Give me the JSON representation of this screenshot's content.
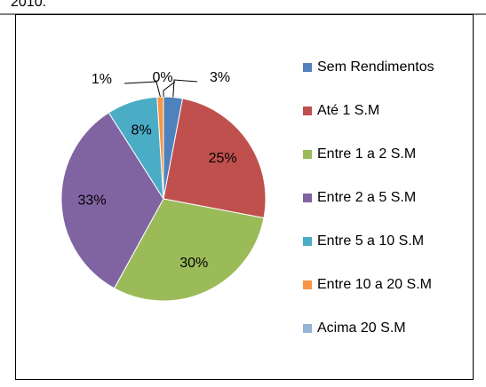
{
  "caption": "2010.",
  "chart_data": {
    "type": "pie",
    "categories": [
      "Sem Rendimentos",
      "Até 1 S.M",
      "Entre 1 a 2 S.M",
      "Entre 2 a 5 S.M",
      "Entre 5 a 10 S.M",
      "Entre 10 a 20 S.M",
      "Acima 20 S.M"
    ],
    "values": [
      3,
      25,
      30,
      33,
      8,
      1,
      0
    ],
    "value_labels": [
      "3%",
      "25%",
      "30%",
      "33%",
      "8%",
      "1%",
      "0%"
    ],
    "colors": [
      "#4f81bd",
      "#c0504d",
      "#9bbb59",
      "#8064a2",
      "#4bacc6",
      "#f79646",
      "#95b3d7"
    ],
    "legend": "right"
  }
}
